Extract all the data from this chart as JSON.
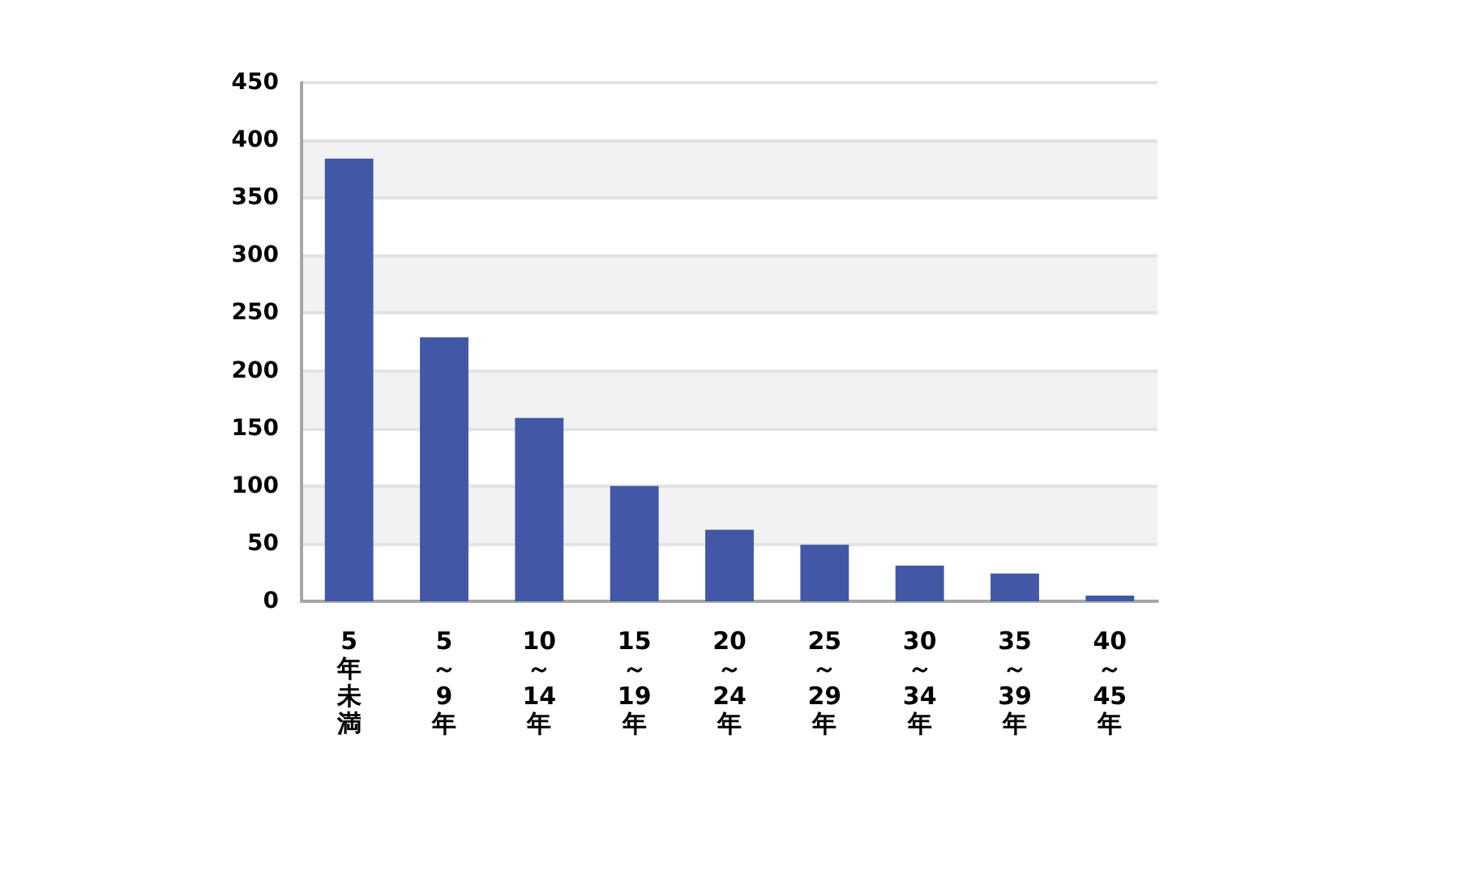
{
  "chart_data": {
    "type": "bar",
    "categories": [
      "5年未満",
      "5～9年",
      "10～14年",
      "15～19年",
      "20～24年",
      "25～29年",
      "30～34年",
      "35～39年",
      "40～45年"
    ],
    "values": [
      384,
      229,
      159,
      100,
      62,
      49,
      31,
      24,
      5
    ],
    "color": "#4257a5",
    "ylim": [
      0,
      450
    ],
    "yticks": [
      0,
      50,
      100,
      150,
      200,
      250,
      300,
      350,
      400,
      450
    ],
    "grid": "y"
  }
}
